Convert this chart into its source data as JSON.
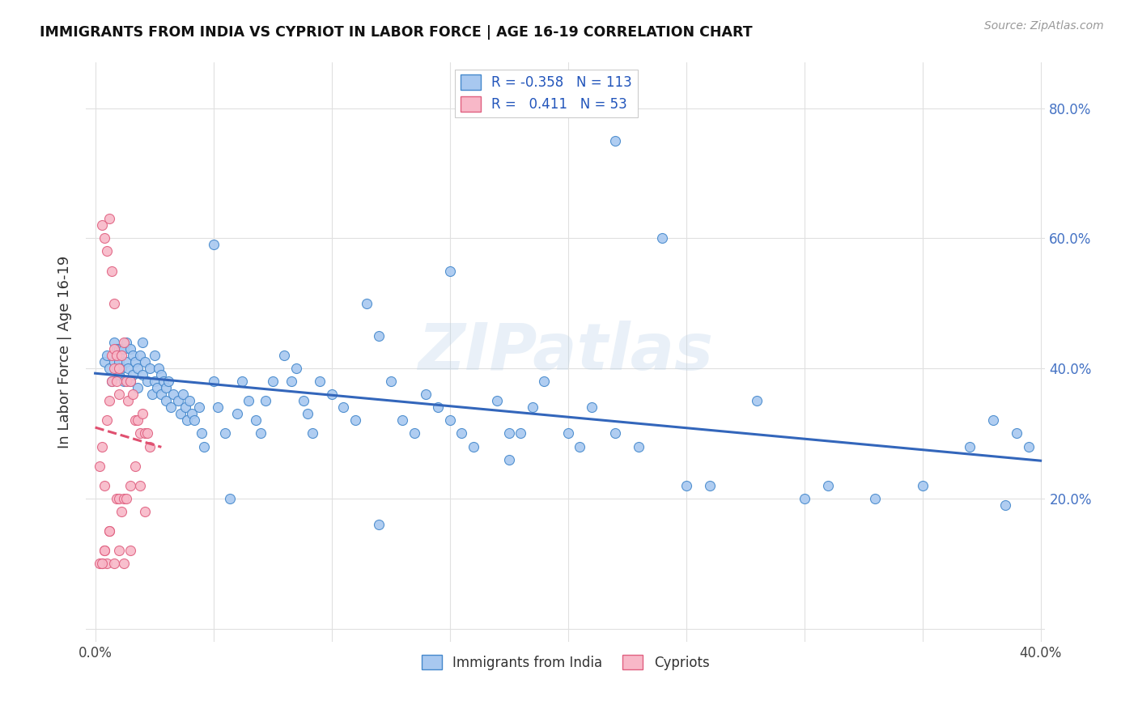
{
  "title": "IMMIGRANTS FROM INDIA VS CYPRIOT IN LABOR FORCE | AGE 16-19 CORRELATION CHART",
  "source": "Source: ZipAtlas.com",
  "ylabel": "In Labor Force | Age 16-19",
  "legend_r_india": "-0.358",
  "legend_n_india": "113",
  "legend_r_cypriot": "0.411",
  "legend_n_cypriot": "53",
  "india_face_color": "#a8c8f0",
  "cypriot_face_color": "#f8b8c8",
  "india_edge_color": "#4488cc",
  "cypriot_edge_color": "#e06080",
  "india_line_color": "#3366bb",
  "cypriot_line_color": "#e05070",
  "watermark": "ZIPatlas",
  "india_scatter_x": [
    0.004,
    0.005,
    0.006,
    0.007,
    0.008,
    0.008,
    0.009,
    0.009,
    0.01,
    0.01,
    0.01,
    0.01,
    0.011,
    0.011,
    0.012,
    0.012,
    0.013,
    0.013,
    0.014,
    0.015,
    0.015,
    0.016,
    0.016,
    0.017,
    0.018,
    0.018,
    0.019,
    0.02,
    0.02,
    0.021,
    0.022,
    0.023,
    0.024,
    0.025,
    0.025,
    0.026,
    0.027,
    0.028,
    0.028,
    0.029,
    0.03,
    0.03,
    0.031,
    0.032,
    0.033,
    0.035,
    0.036,
    0.037,
    0.038,
    0.039,
    0.04,
    0.041,
    0.042,
    0.044,
    0.045,
    0.046,
    0.05,
    0.052,
    0.055,
    0.057,
    0.06,
    0.062,
    0.065,
    0.068,
    0.07,
    0.072,
    0.075,
    0.08,
    0.083,
    0.085,
    0.088,
    0.09,
    0.092,
    0.095,
    0.1,
    0.105,
    0.11,
    0.115,
    0.12,
    0.125,
    0.13,
    0.135,
    0.14,
    0.145,
    0.15,
    0.155,
    0.16,
    0.17,
    0.175,
    0.18,
    0.185,
    0.19,
    0.2,
    0.205,
    0.21,
    0.22,
    0.23,
    0.24,
    0.25,
    0.26,
    0.28,
    0.3,
    0.31,
    0.33,
    0.35,
    0.37,
    0.38,
    0.385,
    0.39,
    0.395,
    0.05,
    0.12,
    0.15,
    0.175,
    0.22
  ],
  "india_scatter_y": [
    0.41,
    0.42,
    0.4,
    0.38,
    0.41,
    0.44,
    0.4,
    0.43,
    0.42,
    0.43,
    0.39,
    0.41,
    0.43,
    0.4,
    0.43,
    0.38,
    0.41,
    0.44,
    0.4,
    0.43,
    0.38,
    0.42,
    0.39,
    0.41,
    0.4,
    0.37,
    0.42,
    0.44,
    0.39,
    0.41,
    0.38,
    0.4,
    0.36,
    0.42,
    0.38,
    0.37,
    0.4,
    0.39,
    0.36,
    0.38,
    0.35,
    0.37,
    0.38,
    0.34,
    0.36,
    0.35,
    0.33,
    0.36,
    0.34,
    0.32,
    0.35,
    0.33,
    0.32,
    0.34,
    0.3,
    0.28,
    0.38,
    0.34,
    0.3,
    0.2,
    0.33,
    0.38,
    0.35,
    0.32,
    0.3,
    0.35,
    0.38,
    0.42,
    0.38,
    0.4,
    0.35,
    0.33,
    0.3,
    0.38,
    0.36,
    0.34,
    0.32,
    0.5,
    0.45,
    0.38,
    0.32,
    0.3,
    0.36,
    0.34,
    0.32,
    0.3,
    0.28,
    0.35,
    0.26,
    0.3,
    0.34,
    0.38,
    0.3,
    0.28,
    0.34,
    0.3,
    0.28,
    0.6,
    0.22,
    0.22,
    0.35,
    0.2,
    0.22,
    0.2,
    0.22,
    0.28,
    0.32,
    0.19,
    0.3,
    0.28,
    0.59,
    0.16,
    0.55,
    0.3,
    0.75
  ],
  "cypriot_scatter_x": [
    0.002,
    0.003,
    0.003,
    0.004,
    0.004,
    0.005,
    0.005,
    0.006,
    0.006,
    0.007,
    0.007,
    0.008,
    0.008,
    0.009,
    0.009,
    0.01,
    0.01,
    0.011,
    0.012,
    0.013,
    0.014,
    0.015,
    0.016,
    0.017,
    0.018,
    0.019,
    0.02,
    0.021,
    0.022,
    0.023,
    0.003,
    0.004,
    0.005,
    0.006,
    0.007,
    0.008,
    0.009,
    0.01,
    0.011,
    0.012,
    0.013,
    0.015,
    0.017,
    0.019,
    0.021,
    0.002,
    0.003,
    0.004,
    0.006,
    0.008,
    0.01,
    0.012,
    0.015
  ],
  "cypriot_scatter_y": [
    0.25,
    0.28,
    0.1,
    0.22,
    0.12,
    0.32,
    0.1,
    0.35,
    0.15,
    0.42,
    0.38,
    0.43,
    0.4,
    0.38,
    0.42,
    0.4,
    0.36,
    0.42,
    0.44,
    0.38,
    0.35,
    0.38,
    0.36,
    0.32,
    0.32,
    0.3,
    0.33,
    0.3,
    0.3,
    0.28,
    0.62,
    0.6,
    0.58,
    0.63,
    0.55,
    0.5,
    0.2,
    0.2,
    0.18,
    0.2,
    0.2,
    0.22,
    0.25,
    0.22,
    0.18,
    0.1,
    0.1,
    0.12,
    0.15,
    0.1,
    0.12,
    0.1,
    0.12
  ]
}
